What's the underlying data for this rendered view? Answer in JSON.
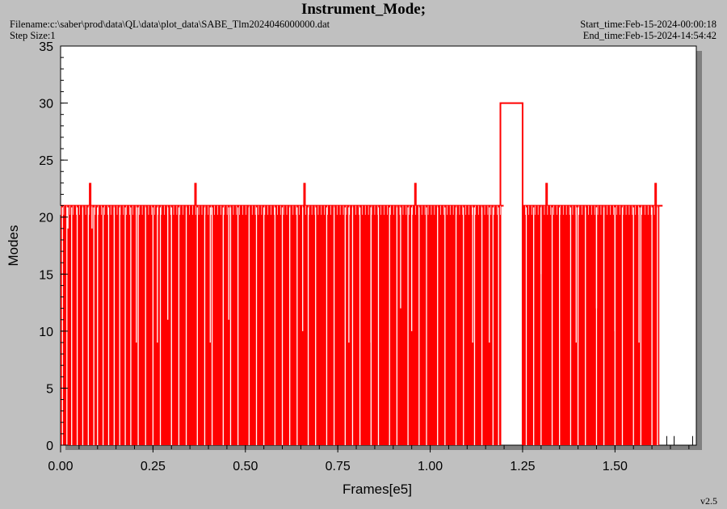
{
  "header": {
    "title": "Instrument_Mode;",
    "filename": "Filename:c:\\saber\\prod\\data\\QL\\data\\plot_data\\SABE_Tlm2024046000000.dat",
    "step_size": "Step Size:1",
    "start_time": "Start_time:Feb-15-2024-00:00:18",
    "end_time": "End_time:Feb-15-2024-14:54:42",
    "version": "v2.5"
  },
  "colors": {
    "trace": "#ff0000",
    "plot_bg": "#ffffff",
    "page_bg": "#c0c0c0",
    "shadow": "#808080"
  },
  "chart_data": {
    "type": "line",
    "title": "Instrument_Mode;",
    "xlabel": "Frames[e5]",
    "ylabel": "Modes",
    "xlim": [
      0,
      1.72
    ],
    "ylim": [
      0,
      35
    ],
    "xticks": [
      "0.00",
      "0.25",
      "0.50",
      "0.75",
      "1.00",
      "1.25",
      "1.50"
    ],
    "yticks": [
      "0",
      "5",
      "10",
      "15",
      "20",
      "25",
      "30",
      "35"
    ],
    "grid": false,
    "baseline_mode": 21,
    "series": [
      {
        "segments": [
          {
            "x_start": 0.0,
            "x_end": 1.19,
            "value": 21
          },
          {
            "x_start": 1.19,
            "x_end": 1.25,
            "value": 30
          },
          {
            "x_start": 1.25,
            "x_end": 1.62,
            "value": 21
          }
        ],
        "spikes_to_23": [
          0.08,
          0.365,
          0.66,
          0.96,
          1.315,
          1.61
        ],
        "drops": [
          {
            "x": 0.005,
            "value": 0
          },
          {
            "x": 0.017,
            "value": 0
          },
          {
            "x": 0.03,
            "value": 0
          },
          {
            "x": 0.045,
            "value": 0
          },
          {
            "x": 0.06,
            "value": 0
          },
          {
            "x": 0.075,
            "value": 0
          },
          {
            "x": 0.09,
            "value": 0
          },
          {
            "x": 0.1,
            "value": 0
          },
          {
            "x": 0.115,
            "value": 0
          },
          {
            "x": 0.13,
            "value": 0
          },
          {
            "x": 0.145,
            "value": 0
          },
          {
            "x": 0.16,
            "value": 0
          },
          {
            "x": 0.175,
            "value": 0
          },
          {
            "x": 0.19,
            "value": 0
          },
          {
            "x": 0.21,
            "value": 0
          },
          {
            "x": 0.23,
            "value": 0
          },
          {
            "x": 0.25,
            "value": 0
          },
          {
            "x": 0.27,
            "value": 0
          },
          {
            "x": 0.3,
            "value": 0
          },
          {
            "x": 0.32,
            "value": 0
          },
          {
            "x": 0.34,
            "value": 0
          },
          {
            "x": 0.37,
            "value": 0
          },
          {
            "x": 0.39,
            "value": 0
          },
          {
            "x": 0.41,
            "value": 0
          },
          {
            "x": 0.44,
            "value": 0
          },
          {
            "x": 0.46,
            "value": 0
          },
          {
            "x": 0.48,
            "value": 0
          },
          {
            "x": 0.51,
            "value": 0
          },
          {
            "x": 0.53,
            "value": 0
          },
          {
            "x": 0.55,
            "value": 0
          },
          {
            "x": 0.58,
            "value": 0
          },
          {
            "x": 0.6,
            "value": 0
          },
          {
            "x": 0.62,
            "value": 0
          },
          {
            "x": 0.64,
            "value": 0
          },
          {
            "x": 0.67,
            "value": 0
          },
          {
            "x": 0.69,
            "value": 0
          },
          {
            "x": 0.72,
            "value": 0
          },
          {
            "x": 0.74,
            "value": 0
          },
          {
            "x": 0.77,
            "value": 0
          },
          {
            "x": 0.79,
            "value": 0
          },
          {
            "x": 0.81,
            "value": 0
          },
          {
            "x": 0.84,
            "value": 0
          },
          {
            "x": 0.86,
            "value": 0
          },
          {
            "x": 0.89,
            "value": 0
          },
          {
            "x": 0.91,
            "value": 0
          },
          {
            "x": 0.94,
            "value": 0
          },
          {
            "x": 0.97,
            "value": 0
          },
          {
            "x": 0.99,
            "value": 0
          },
          {
            "x": 1.02,
            "value": 0
          },
          {
            "x": 1.04,
            "value": 0
          },
          {
            "x": 1.07,
            "value": 0
          },
          {
            "x": 1.09,
            "value": 0
          },
          {
            "x": 1.12,
            "value": 0
          },
          {
            "x": 1.14,
            "value": 0
          },
          {
            "x": 1.17,
            "value": 0
          },
          {
            "x": 1.185,
            "value": 0
          },
          {
            "x": 1.26,
            "value": 0
          },
          {
            "x": 1.28,
            "value": 0
          },
          {
            "x": 1.3,
            "value": 0
          },
          {
            "x": 1.33,
            "value": 0
          },
          {
            "x": 1.35,
            "value": 0
          },
          {
            "x": 1.38,
            "value": 0
          },
          {
            "x": 1.4,
            "value": 0
          },
          {
            "x": 1.42,
            "value": 0
          },
          {
            "x": 1.45,
            "value": 0
          },
          {
            "x": 1.47,
            "value": 0
          },
          {
            "x": 1.5,
            "value": 0
          },
          {
            "x": 1.52,
            "value": 0
          },
          {
            "x": 1.55,
            "value": 0
          },
          {
            "x": 1.57,
            "value": 0
          },
          {
            "x": 1.6,
            "value": 0
          },
          {
            "x": 1.615,
            "value": 0
          },
          {
            "x": 0.02,
            "value": 19
          },
          {
            "x": 0.085,
            "value": 19
          },
          {
            "x": 0.205,
            "value": 9
          },
          {
            "x": 0.262,
            "value": 9
          },
          {
            "x": 0.29,
            "value": 11
          },
          {
            "x": 0.405,
            "value": 9
          },
          {
            "x": 0.455,
            "value": 11
          },
          {
            "x": 0.655,
            "value": 10
          },
          {
            "x": 0.78,
            "value": 9
          },
          {
            "x": 0.84,
            "value": 9
          },
          {
            "x": 0.92,
            "value": 12
          },
          {
            "x": 0.95,
            "value": 10
          },
          {
            "x": 1.115,
            "value": 9
          },
          {
            "x": 1.16,
            "value": 9
          },
          {
            "x": 1.3,
            "value": 15
          },
          {
            "x": 1.45,
            "value": 12
          },
          {
            "x": 1.395,
            "value": 9
          },
          {
            "x": 1.5,
            "value": 10
          },
          {
            "x": 1.565,
            "value": 9
          }
        ],
        "tail": [
          {
            "x": 1.64,
            "value": 0.8
          },
          {
            "x": 1.66,
            "value": 0.8
          },
          {
            "x": 1.71,
            "value": 0.8
          }
        ]
      }
    ]
  }
}
